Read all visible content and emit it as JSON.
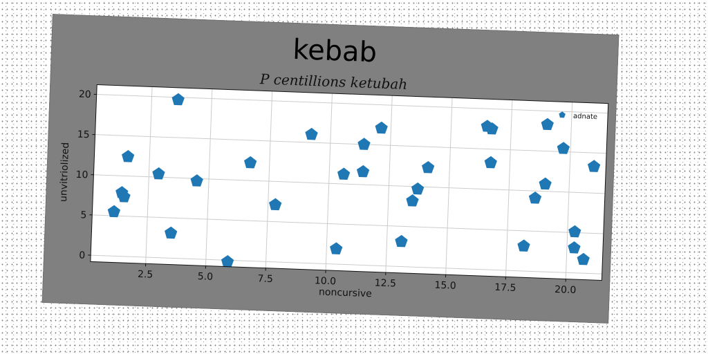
{
  "colors": {
    "card_background": "#808080",
    "plot_background": "#ffffff",
    "marker": "#1f77b4",
    "grid": "#cccccc"
  },
  "chart_data": {
    "type": "scatter",
    "title": "kebab",
    "subtitle": "P centillions ketubah",
    "xlabel": "noncursive",
    "ylabel": "unvitriolized",
    "xlim": [
      0.2,
      21.5
    ],
    "ylim": [
      -0.8,
      21.2
    ],
    "xticks": [
      2.5,
      5.0,
      7.5,
      10.0,
      12.5,
      15.0,
      17.5,
      20.0
    ],
    "xtick_labels": [
      "2.5",
      "5.0",
      "7.5",
      "10.0",
      "12.5",
      "15.0",
      "17.5",
      "20.0"
    ],
    "yticks": [
      0,
      5,
      10,
      15,
      20
    ],
    "ytick_labels": [
      "0",
      "5",
      "10",
      "15",
      "20"
    ],
    "grid": true,
    "marker": "pentagon",
    "legend": {
      "position": "top-right",
      "entries": [
        "adnate"
      ]
    },
    "series": [
      {
        "name": "adnate",
        "points": [
          [
            1.1,
            5.5
          ],
          [
            1.4,
            7.9
          ],
          [
            1.5,
            7.4
          ],
          [
            1.6,
            12.4
          ],
          [
            2.9,
            10.4
          ],
          [
            3.5,
            3.1
          ],
          [
            3.6,
            19.7
          ],
          [
            4.5,
            9.7
          ],
          [
            5.9,
            -0.2
          ],
          [
            6.7,
            12.2
          ],
          [
            7.8,
            7.1
          ],
          [
            9.2,
            16.0
          ],
          [
            10.4,
            1.9
          ],
          [
            10.6,
            11.2
          ],
          [
            11.4,
            15.0
          ],
          [
            11.4,
            11.6
          ],
          [
            12.1,
            17.1
          ],
          [
            13.1,
            3.1
          ],
          [
            13.5,
            8.2
          ],
          [
            13.7,
            9.7
          ],
          [
            14.1,
            12.4
          ],
          [
            16.5,
            17.8
          ],
          [
            16.7,
            17.5
          ],
          [
            16.7,
            13.3
          ],
          [
            18.2,
            3.1
          ],
          [
            18.6,
            9.1
          ],
          [
            19.0,
            10.9
          ],
          [
            19.0,
            18.3
          ],
          [
            19.7,
            15.4
          ],
          [
            20.3,
            5.1
          ],
          [
            20.3,
            3.1
          ],
          [
            20.7,
            1.7
          ],
          [
            21.0,
            13.3
          ]
        ]
      }
    ]
  }
}
